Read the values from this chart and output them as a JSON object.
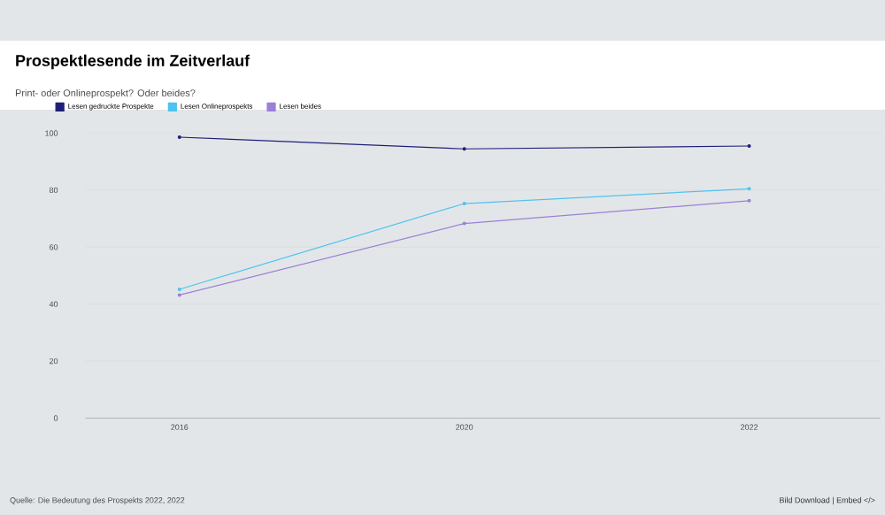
{
  "chart_data": {
    "type": "line",
    "title": "Prospektlesende im Zeitverlauf",
    "subtitle": "Print- oder Onlineprospekt? Oder beides?",
    "categories": [
      "2016",
      "2020",
      "2022"
    ],
    "series": [
      {
        "name": "Lesen gedruckte Prospekte",
        "color": "#1f1f7a",
        "values": [
          98.6,
          94.5,
          95.5
        ]
      },
      {
        "name": "Lesen Onlineprospekts",
        "color": "#4fc3f0",
        "values": [
          45.2,
          75.3,
          80.5
        ]
      },
      {
        "name": "Lesen beides",
        "color": "#9a80d8",
        "values": [
          43.2,
          68.3,
          76.3
        ]
      }
    ],
    "ylim": [
      0,
      100
    ],
    "yticks": [
      0,
      20,
      40,
      60,
      80,
      100
    ],
    "grid": "y",
    "legend": "top left",
    "marker": "circle",
    "line_style": "solid",
    "annotations": [
      "Quelle: Die Bedeutung des Prospekts 2022, 2022",
      "Bild Download | Embed </>"
    ]
  }
}
